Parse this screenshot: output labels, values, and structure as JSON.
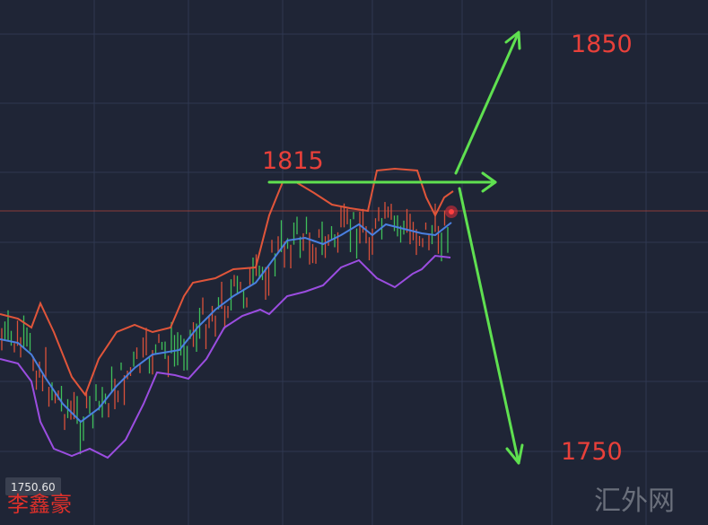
{
  "annotations": {
    "upper_target": "1850",
    "resistance": "1815",
    "lower_target": "1750"
  },
  "price_tag": "1750.60",
  "watermark_author": "李鑫豪",
  "watermark_site": "汇外网"
}
